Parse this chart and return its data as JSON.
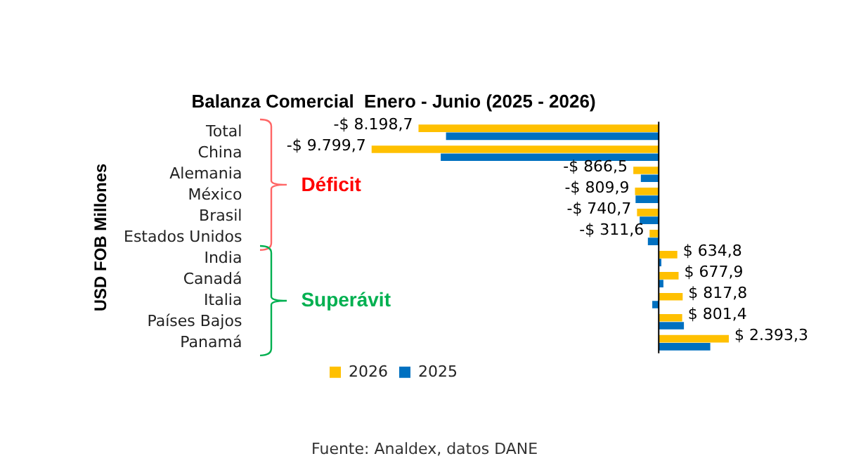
{
  "chart_data": {
    "type": "bar",
    "orientation": "horizontal",
    "title": "Balanza Comercial  Enero - Junio (2025 - 2026)",
    "ylabel": "USD FOB Millones",
    "categories": [
      "Total",
      "China",
      "Alemania",
      "México",
      "Brasil",
      "Estados Unidos",
      "India",
      "Canadá",
      "Italia",
      "Países Bajos",
      "Panamá"
    ],
    "series": [
      {
        "name": "2026",
        "color": "#ffc000",
        "values": [
          -8198.7,
          -9799.7,
          -866.5,
          -809.9,
          -740.7,
          -311.6,
          634.8,
          677.9,
          817.8,
          801.4,
          2393.3
        ],
        "value_labels": [
          "-$ 8.198,7",
          "-$ 9.799,7",
          "-$ 866,5",
          "-$ 809,9",
          "-$ 740,7",
          "-$ 311,6",
          "$ 634,8",
          "$ 677,9",
          "$ 817,8",
          "$ 801,4",
          "$ 2.393,3"
        ]
      },
      {
        "name": "2025",
        "color": "#0070c0",
        "values": [
          -7260,
          -7440,
          -610,
          -790,
          -650,
          -370,
          90,
          160,
          -220,
          860,
          1760
        ]
      }
    ],
    "legend": "bottom",
    "annotations": [
      "Déficit",
      "Superávit",
      "Fuente: Analdex, datos DANE"
    ]
  }
}
